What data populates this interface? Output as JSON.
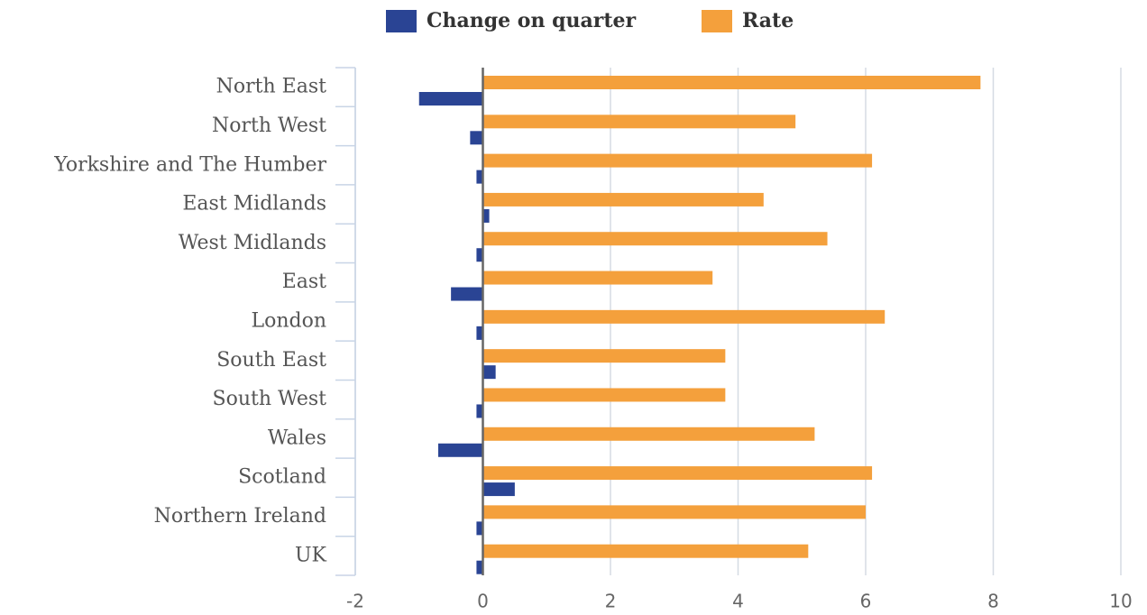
{
  "chart_data": {
    "type": "bar",
    "orientation": "horizontal",
    "categories": [
      "North East",
      "North West",
      "Yorkshire and The Humber",
      "East Midlands",
      "West Midlands",
      "East",
      "London",
      "South East",
      "South West",
      "Wales",
      "Scotland",
      "Northern Ireland",
      "UK"
    ],
    "series": [
      {
        "name": "Change on quarter",
        "color": "#2a4494",
        "values": [
          -1.0,
          -0.2,
          -0.1,
          0.1,
          -0.1,
          -0.5,
          -0.1,
          0.2,
          -0.1,
          -0.7,
          0.5,
          -0.1,
          -0.1
        ]
      },
      {
        "name": "Rate",
        "color": "#f4a03c",
        "values": [
          7.8,
          4.9,
          6.1,
          4.4,
          5.4,
          3.6,
          6.3,
          3.8,
          3.8,
          5.2,
          6.1,
          6.0,
          5.1
        ]
      }
    ],
    "xlim": [
      -2,
      10
    ],
    "xticks": [
      -2,
      0,
      2,
      4,
      6,
      8,
      10
    ],
    "grid": true,
    "legend": "top"
  }
}
